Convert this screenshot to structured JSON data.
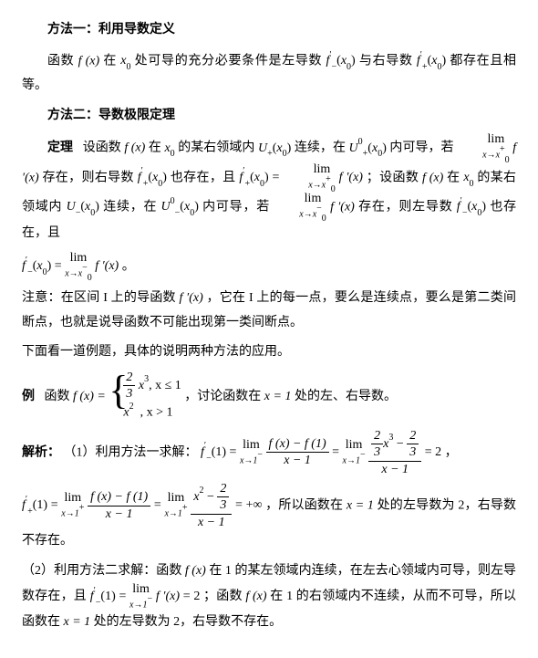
{
  "colors": {
    "text": "#000000",
    "background": "#ffffff"
  },
  "typography": {
    "base_font": "SimSun / 宋体",
    "math_font": "Times New Roman",
    "base_size_pt": 14,
    "line_height": 1.9
  },
  "structure_type": "document",
  "m1": {
    "title": "方法一：利用导数定义",
    "p1a": "函数 ",
    "fx": "f (x)",
    "p1b": " 在 ",
    "x0": "x",
    "x0sub": "0",
    "p1c": " 处可导的充分必要条件是左导数 ",
    "fminus": "f",
    "fminus_sub": "−",
    "prime": "′",
    "paren_x0_l": "(",
    "paren_x0_r": ")",
    "p1d": " 与右导数 ",
    "fplus_sub": "+",
    "p1e": " 都存在且相等。"
  },
  "m2": {
    "title": "方法二：导数极限定理",
    "theorem_label": "定理",
    "t1a": "设函数 ",
    "t1b": " 在 ",
    "t1c": " 的某右领域内 ",
    "Uplus": "U",
    "Uplus_sub": "+",
    "t1d": " 连续，在 ",
    "U0": "U",
    "U0_sup": "0",
    "t1e": " 内可导，若 ",
    "lim_top": "lim",
    "lim_to_x0p": "x→x",
    "lim_to_x0p_sup": "+",
    "lim_to_x0p_sub": "0",
    "fpx": "f ′(x)",
    "t1f": " 存在，则右导数 ",
    "t1g": " 也存在，且 ",
    "eq": " = ",
    "t1h": "；设函数 ",
    "t1i": " 的某右领域内 ",
    "Uminus_sub": "−",
    "t1j": " 连续，在 ",
    "t1k": " 内可导，若 ",
    "lim_to_x0m_sup": "−",
    "t1l": " 存在，则左导数 ",
    "t1m": " 也存在，且",
    "period": "。"
  },
  "note": {
    "a": "注意：在区间 I 上的导函数 ",
    "b": "，它在 I 上的每一点，要么是连续点，要么是第二类间断点，也就是说导函数不可能出现第一类间断点。",
    "c": "下面看一道例题，具体的说明两种方法的应用。"
  },
  "ex": {
    "label": "例",
    "a": "函数 ",
    "fx_eq": "f (x) = ",
    "piece1_frac_top": "2",
    "piece1_frac_bot": "3",
    "piece1_x3": "x",
    "piece1_x3_sup": "3",
    "piece1_cond": ", x ≤ 1",
    "piece2_x2": "x",
    "piece2_x2_sup": "2",
    "piece2_cond": ", x > 1",
    "b": "，讨论函数在 ",
    "xeq1": "x = 1",
    "c": " 处的左、右导数。"
  },
  "sol": {
    "label": "解析：",
    "s1a": "（1）利用方法一求解：",
    "fminus1": "f",
    "fminus1_sub": "−",
    "fminus1_arg": "(1) = ",
    "lim_to_1m": "x→1",
    "lim_to_1m_sup": "−",
    "frac1_top_l": "f (x) − f (1)",
    "frac1_bot": "x − 1",
    "frac2_top_a": "2",
    "frac2_top_b": "3",
    "frac2_top_x3": "x",
    "frac2_top_x3_sup": "3",
    "frac2_top_minus": " − ",
    "frac2_top_c": "2",
    "frac2_top_d": "3",
    "eq2": " = 2",
    "comma": "，",
    "fplus1_sub": "+",
    "lim_to_1p_sup": "+",
    "frac3_top_x2": "x",
    "frac3_top_x2_sup": "2",
    "eq_inf": " = +∞",
    "s1b": "，所以函数在 ",
    "s1c": " 处的左导数为 2，右导数不存在。",
    "s2a": "（2）利用方法二求解：函数 ",
    "s2b": " 在 1 的某左领域内连续，在左去心领域内可导，则左导数存在，且 ",
    "s2c": "；函数 ",
    "s2d": " 在 1 的右领域内不连续，从而不可导，所以函数在 ",
    "s2e": " 处的左导数为 2，右导数不存在。"
  }
}
